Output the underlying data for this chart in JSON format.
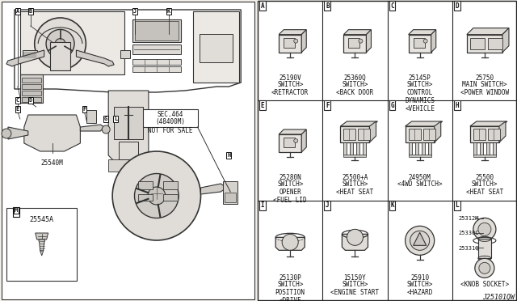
{
  "bg_color": "#f2efea",
  "diagram_id": "J25101QW",
  "grid_color": "#222222",
  "text_color": "#111111",
  "line_color": "#333333",
  "white": "#ffffff",
  "light_gray": "#d8d5d0",
  "mid_gray": "#b8b4af",
  "grid_cells": [
    {
      "label": "A",
      "part": "25190V",
      "name": "<RETRACTOR\nSWITCH>",
      "row": 0,
      "col": 0,
      "type": "square"
    },
    {
      "label": "B",
      "part": "25360Q",
      "name": "<BACK DOOR\nSWITCH>",
      "row": 0,
      "col": 1,
      "type": "square"
    },
    {
      "label": "C",
      "part": "25145P",
      "name": "<VEHICLE\nDYNAMICS\nCONTROL\nSWITCH>",
      "row": 0,
      "col": 2,
      "type": "square"
    },
    {
      "label": "D",
      "part": "25750",
      "name": "<POWER WINDOW\nMAIN SWITCH>",
      "row": 0,
      "col": 3,
      "type": "multi"
    },
    {
      "label": "E",
      "part": "25280N",
      "name": "<FUEL LID\nOPENER\nSWITCH>",
      "row": 1,
      "col": 0,
      "type": "square"
    },
    {
      "label": "F",
      "part": "25500+A",
      "name": "<HEAT SEAT\nSWITCH>",
      "row": 1,
      "col": 1,
      "type": "multi2"
    },
    {
      "label": "G",
      "part": "24950M",
      "name": "<4WD SWITCH>",
      "row": 1,
      "col": 2,
      "type": "multi2"
    },
    {
      "label": "H",
      "part": "25500",
      "name": "<HEAT SEAT\nSWITCH>",
      "row": 1,
      "col": 3,
      "type": "multi2"
    },
    {
      "label": "I",
      "part": "25130P",
      "name": "<DRIVE\nPOSITION\nSWITCH>",
      "row": 2,
      "col": 0,
      "type": "round"
    },
    {
      "label": "J",
      "part": "15150Y",
      "name": "<ENGINE START\nSWITCH>",
      "row": 2,
      "col": 1,
      "type": "round2"
    },
    {
      "label": "K",
      "part": "25910",
      "name": "<HAZARD\nSWITCH>",
      "row": 2,
      "col": 2,
      "type": "round3"
    },
    {
      "label": "L",
      "part1": "25312M",
      "part2": "25330C",
      "part3": "25331Q",
      "name": "<KNOB SOCKET>",
      "row": 2,
      "col": 3,
      "type": "knob"
    }
  ]
}
